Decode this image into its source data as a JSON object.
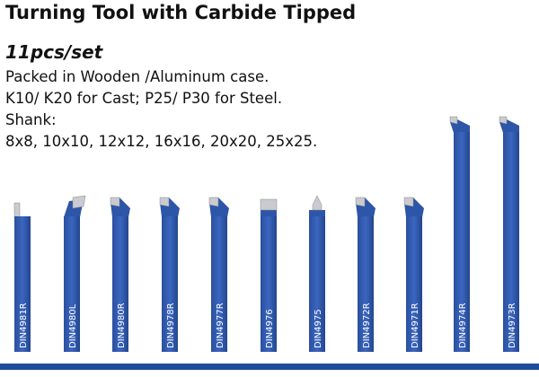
{
  "header": {
    "title": "Turning Tool with Carbide Tipped"
  },
  "description": {
    "subtitle": "11pcs/set",
    "lines": [
      "Packed in Wooden /Aluminum case.",
      "K10/ K20 for Cast; P25/ P30 for Steel.",
      "Shank:",
      "8x8, 10x10, 12x12, 16x16, 20x20, 25x25."
    ]
  },
  "tools": [
    "DIN4981R",
    "DIN4980L",
    "DIN4980R",
    "DIN4978R",
    "DIN4977R",
    "DIN4976",
    "DIN4975",
    "DIN4972R",
    "DIN4971R",
    "DIN4974R",
    "DIN4973R"
  ]
}
